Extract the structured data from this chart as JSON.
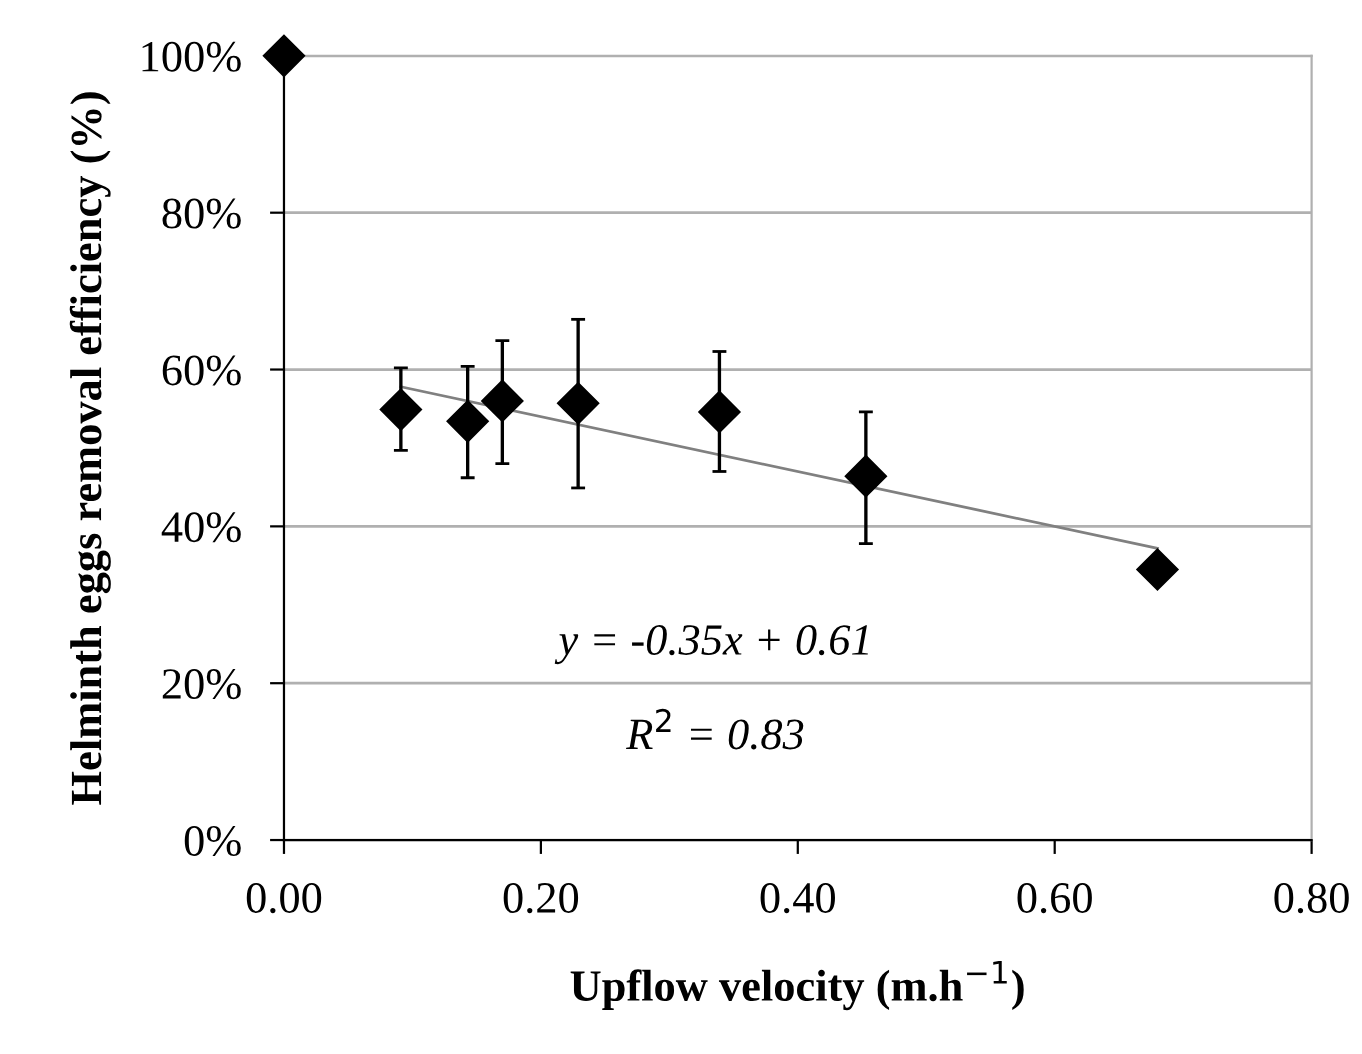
{
  "chart_data": {
    "type": "scatter",
    "xlabel": "Upflow velocity (m.h$^{−1}$)",
    "ylabel": "Helminth eggs removal efficiency (%)",
    "xlim": [
      0,
      0.8
    ],
    "xticks": [
      {
        "value": 0,
        "label": "0.00"
      },
      {
        "value": 0.2,
        "label": "0.20"
      },
      {
        "value": 0.4,
        "label": "0.40"
      },
      {
        "value": 0.6,
        "label": "0.60"
      },
      {
        "value": 0.8,
        "label": "0.80"
      }
    ],
    "ylim": [
      0,
      100
    ],
    "yticks": [
      {
        "value": 0,
        "label": "0%"
      },
      {
        "value": 20,
        "label": "20%"
      },
      {
        "value": 40,
        "label": "40%"
      },
      {
        "value": 60,
        "label": "60%"
      },
      {
        "value": 80,
        "label": "80%"
      },
      {
        "value": 100,
        "label": "100%"
      }
    ],
    "grid": "y",
    "legend": false,
    "series": [
      {
        "marker": "diamond",
        "color": "#000000",
        "x": [
          0,
          0.091,
          0.143,
          0.17,
          0.229,
          0.339,
          0.453,
          0.68
        ],
        "values": [
          100,
          54.9,
          53.4,
          56.0,
          55.7,
          54.6,
          46.4,
          34.5
        ],
        "errors": [
          null,
          [
            49.7,
            60.2
          ],
          [
            46.2,
            60.4
          ],
          [
            48.0,
            63.7
          ],
          [
            44.9,
            66.4
          ],
          [
            47.0,
            62.3
          ],
          [
            37.8,
            54.6
          ],
          null
        ]
      },
      {
        "type": "line",
        "marker": "none",
        "color": "#808080",
        "x": [
          0.091,
          0.68
        ],
        "values": [
          57.8,
          37.2
        ]
      }
    ],
    "annotations": [
      "y = -0.35x + 0.61",
      "R$^{2}$ = 0.83"
    ]
  }
}
